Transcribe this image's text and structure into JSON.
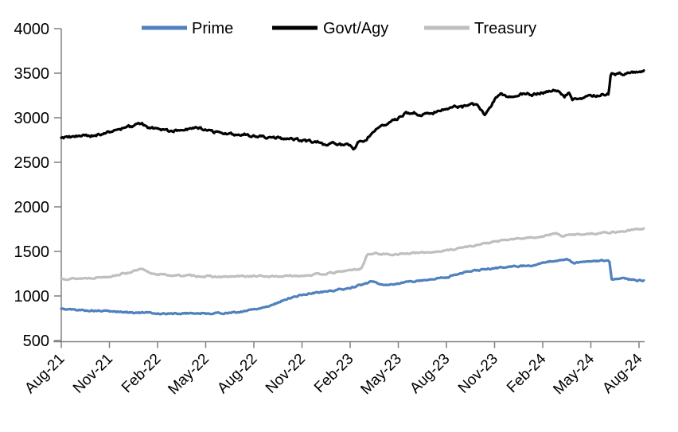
{
  "figure": {
    "background": "#ffffff",
    "description": "Line chart of money market fund assets by fund type, Aug-2021 to Aug-2024"
  },
  "colors": {
    "axis": "#808080",
    "text": "#000000",
    "prime": "#4f81bd",
    "govt_agy": "#000000",
    "treasury": "#bfbfbf"
  },
  "chart_data": {
    "type": "line",
    "title": "",
    "xlabel": "",
    "ylabel": "",
    "grid": false,
    "legend": {
      "position": "top",
      "entries": [
        "Prime",
        "Govt/Agy",
        "Treasury"
      ]
    },
    "x_axis": {
      "unit": "months since Aug-2021 (tick every 3 months)",
      "range_months": [
        0,
        36.3
      ],
      "tick_labels": [
        "Aug-21",
        "Nov-21",
        "Feb-22",
        "May-22",
        "Aug-22",
        "Nov-22",
        "Feb-23",
        "May-23",
        "Aug-23",
        "Nov-23",
        "Feb-24",
        "May-24",
        "Aug-24"
      ]
    },
    "y_axis": {
      "min": 500,
      "max": 4000,
      "step": 500,
      "tick_labels": [
        "500",
        "1000",
        "1500",
        "2000",
        "2500",
        "3000",
        "3500",
        "4000"
      ]
    },
    "series": [
      {
        "name": "Prime",
        "color": "#4f81bd",
        "points": [
          [
            0,
            855
          ],
          [
            1,
            843
          ],
          [
            2,
            835
          ],
          [
            3,
            828
          ],
          [
            4,
            818
          ],
          [
            5,
            812
          ],
          [
            6,
            805
          ],
          [
            7,
            800
          ],
          [
            8,
            808
          ],
          [
            9,
            803
          ],
          [
            10,
            808
          ],
          [
            11,
            815
          ],
          [
            11.5,
            835
          ],
          [
            12,
            850
          ],
          [
            13,
            890
          ],
          [
            14,
            965
          ],
          [
            15,
            1012
          ],
          [
            16,
            1040
          ],
          [
            17,
            1062
          ],
          [
            18,
            1090
          ],
          [
            19,
            1140
          ],
          [
            19.4,
            1165
          ],
          [
            19.9,
            1128
          ],
          [
            20.5,
            1130
          ],
          [
            21,
            1138
          ],
          [
            21.5,
            1158
          ],
          [
            22,
            1168
          ],
          [
            23,
            1185
          ],
          [
            24,
            1210
          ],
          [
            25,
            1260
          ],
          [
            26,
            1290
          ],
          [
            27,
            1310
          ],
          [
            28,
            1330
          ],
          [
            29,
            1340
          ],
          [
            30,
            1365
          ],
          [
            30.7,
            1395
          ],
          [
            31.5,
            1410
          ],
          [
            32,
            1365
          ],
          [
            32.5,
            1382
          ],
          [
            33,
            1390
          ],
          [
            34.15,
            1400
          ],
          [
            34.3,
            1180
          ],
          [
            35,
            1192
          ],
          [
            35.6,
            1180
          ],
          [
            36.3,
            1175
          ]
        ]
      },
      {
        "name": "Govt/Agy",
        "color": "#000000",
        "points": [
          [
            0,
            2775
          ],
          [
            1,
            2790
          ],
          [
            2,
            2800
          ],
          [
            3,
            2840
          ],
          [
            4,
            2885
          ],
          [
            5,
            2930
          ],
          [
            5.4,
            2880
          ],
          [
            6,
            2885
          ],
          [
            6.5,
            2855
          ],
          [
            7,
            2850
          ],
          [
            7.5,
            2880
          ],
          [
            8,
            2870
          ],
          [
            8.6,
            2880
          ],
          [
            9,
            2860
          ],
          [
            9.5,
            2845
          ],
          [
            10,
            2810
          ],
          [
            10.5,
            2825
          ],
          [
            11,
            2805
          ],
          [
            11.5,
            2815
          ],
          [
            12,
            2795
          ],
          [
            12.5,
            2785
          ],
          [
            13,
            2780
          ],
          [
            14,
            2765
          ],
          [
            15,
            2745
          ],
          [
            16,
            2725
          ],
          [
            16.5,
            2690
          ],
          [
            17,
            2715
          ],
          [
            17.5,
            2700
          ],
          [
            18,
            2680
          ],
          [
            18.25,
            2655
          ],
          [
            18.5,
            2720
          ],
          [
            19,
            2750
          ],
          [
            19.5,
            2865
          ],
          [
            20,
            2910
          ],
          [
            20.5,
            2945
          ],
          [
            21,
            2990
          ],
          [
            21.5,
            3060
          ],
          [
            22,
            3050
          ],
          [
            22.4,
            3030
          ],
          [
            23,
            3050
          ],
          [
            24,
            3095
          ],
          [
            24.4,
            3130
          ],
          [
            25,
            3120
          ],
          [
            25.5,
            3150
          ],
          [
            26,
            3145
          ],
          [
            26.35,
            3030
          ],
          [
            26.7,
            3100
          ],
          [
            27,
            3200
          ],
          [
            27.4,
            3255
          ],
          [
            27.8,
            3225
          ],
          [
            28.2,
            3245
          ],
          [
            28.6,
            3260
          ],
          [
            29,
            3270
          ],
          [
            29.4,
            3255
          ],
          [
            29.8,
            3280
          ],
          [
            30.3,
            3295
          ],
          [
            31,
            3310
          ],
          [
            31.35,
            3230
          ],
          [
            31.6,
            3280
          ],
          [
            31.85,
            3200
          ],
          [
            32.3,
            3215
          ],
          [
            33,
            3240
          ],
          [
            33.6,
            3255
          ],
          [
            34.1,
            3270
          ],
          [
            34.25,
            3500
          ],
          [
            34.6,
            3490
          ],
          [
            34.9,
            3500
          ],
          [
            35.2,
            3485
          ],
          [
            35.6,
            3500
          ],
          [
            36,
            3515
          ],
          [
            36.3,
            3530
          ]
        ]
      },
      {
        "name": "Treasury",
        "color": "#bfbfbf",
        "points": [
          [
            0,
            1195
          ],
          [
            1,
            1195
          ],
          [
            2,
            1205
          ],
          [
            3,
            1220
          ],
          [
            4,
            1255
          ],
          [
            5,
            1300
          ],
          [
            5.5,
            1258
          ],
          [
            6,
            1245
          ],
          [
            7,
            1230
          ],
          [
            8,
            1228
          ],
          [
            9,
            1220
          ],
          [
            10,
            1212
          ],
          [
            11,
            1220
          ],
          [
            12,
            1222
          ],
          [
            13,
            1220
          ],
          [
            14,
            1222
          ],
          [
            15,
            1230
          ],
          [
            16,
            1242
          ],
          [
            17,
            1260
          ],
          [
            18,
            1290
          ],
          [
            18.7,
            1305
          ],
          [
            19.05,
            1462
          ],
          [
            19.5,
            1478
          ],
          [
            20,
            1470
          ],
          [
            20.5,
            1465
          ],
          [
            21,
            1472
          ],
          [
            22,
            1480
          ],
          [
            23,
            1492
          ],
          [
            24,
            1510
          ],
          [
            25,
            1545
          ],
          [
            26,
            1575
          ],
          [
            27,
            1608
          ],
          [
            28,
            1635
          ],
          [
            29,
            1652
          ],
          [
            30,
            1668
          ],
          [
            30.8,
            1702
          ],
          [
            31.2,
            1672
          ],
          [
            32,
            1690
          ],
          [
            33,
            1700
          ],
          [
            34,
            1712
          ],
          [
            35,
            1725
          ],
          [
            36,
            1752
          ],
          [
            36.3,
            1758
          ]
        ]
      }
    ]
  }
}
